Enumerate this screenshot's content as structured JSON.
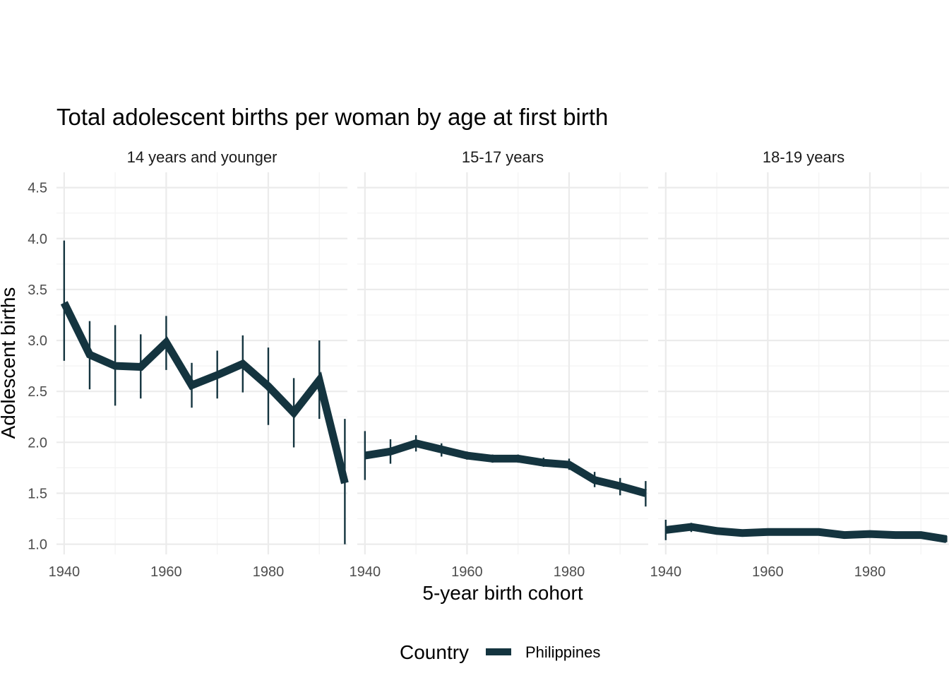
{
  "chart_data": {
    "type": "line",
    "title": "Total adolescent births per woman by age at first birth",
    "xlabel": "5-year birth cohort",
    "ylabel": "Adolescent births",
    "ylim": [
      0.9,
      4.65
    ],
    "xlim": [
      1938.5,
      1995.5
    ],
    "yticks": [
      "1.0",
      "1.5",
      "2.0",
      "2.5",
      "3.0",
      "3.5",
      "4.0",
      "4.5"
    ],
    "xticks": [
      "1940",
      "1960",
      "1980"
    ],
    "legend": {
      "title": "Country",
      "placement": "bottom"
    },
    "series_color": "#14343f",
    "panels": [
      {
        "label": "14 years and younger",
        "series": [
          {
            "name": "Philippines",
            "x": [
              1940,
              1945,
              1950,
              1955,
              1960,
              1965,
              1970,
              1975,
              1980,
              1985,
              1990,
              1995
            ],
            "y": [
              3.37,
              2.86,
              2.75,
              2.74,
              2.98,
              2.56,
              2.66,
              2.77,
              2.55,
              2.29,
              2.61,
              1.6
            ],
            "lower": [
              2.8,
              2.52,
              2.36,
              2.43,
              2.71,
              2.34,
              2.43,
              2.49,
              2.17,
              1.95,
              2.23,
              1.0
            ],
            "upper": [
              3.98,
              3.19,
              3.15,
              3.06,
              3.24,
              2.78,
              2.9,
              3.05,
              2.93,
              2.63,
              3.0,
              2.23
            ]
          }
        ]
      },
      {
        "label": "15-17 years",
        "series": [
          {
            "name": "Philippines",
            "x": [
              1940,
              1945,
              1950,
              1955,
              1960,
              1965,
              1970,
              1975,
              1980,
              1985,
              1990,
              1995
            ],
            "y": [
              1.87,
              1.91,
              1.99,
              1.93,
              1.87,
              1.84,
              1.84,
              1.8,
              1.78,
              1.63,
              1.57,
              1.5
            ],
            "lower": [
              1.63,
              1.79,
              1.91,
              1.86,
              1.83,
              1.8,
              1.8,
              1.76,
              1.73,
              1.56,
              1.48,
              1.37
            ],
            "upper": [
              2.11,
              2.03,
              2.07,
              1.99,
              1.91,
              1.88,
              1.88,
              1.85,
              1.84,
              1.71,
              1.65,
              1.62
            ]
          }
        ]
      },
      {
        "label": "18-19 years",
        "series": [
          {
            "name": "Philippines",
            "x": [
              1940,
              1945,
              1950,
              1955,
              1960,
              1965,
              1970,
              1975,
              1980,
              1985,
              1990,
              1995
            ],
            "y": [
              1.14,
              1.17,
              1.13,
              1.11,
              1.12,
              1.12,
              1.12,
              1.09,
              1.1,
              1.09,
              1.09,
              1.05
            ],
            "lower": [
              1.04,
              1.12,
              1.11,
              1.09,
              1.1,
              1.1,
              1.1,
              1.07,
              1.08,
              1.07,
              1.07,
              1.02
            ],
            "upper": [
              1.24,
              1.21,
              1.15,
              1.13,
              1.14,
              1.14,
              1.14,
              1.11,
              1.12,
              1.11,
              1.11,
              1.08
            ]
          }
        ]
      }
    ]
  }
}
